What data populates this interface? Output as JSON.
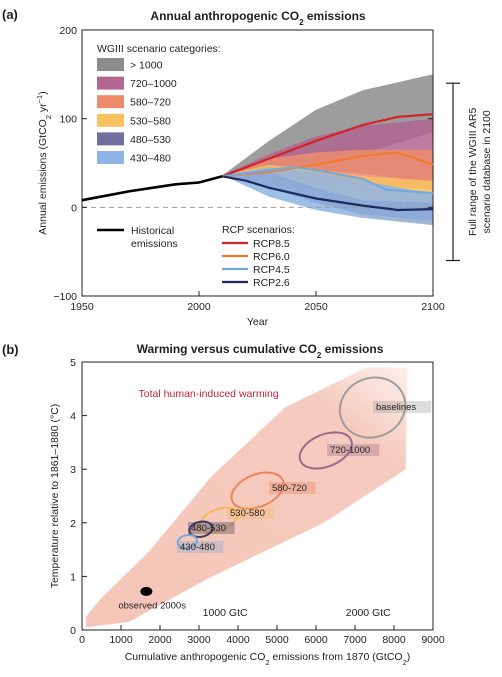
{
  "chart_data": [
    {
      "type": "area",
      "panel_label": "(a)",
      "title": "Annual anthropogenic CO2 emissions",
      "title_main": "Annual anthropogenic CO",
      "title_sub": "2",
      "title_tail": " emissions",
      "xlabel": "Year",
      "ylabel": "Annual emissions (GtCO2 yr−1)",
      "ylabel_main": "Annual emissions (GtCO",
      "ylabel_sub": "2",
      "ylabel_mid": " yr",
      "ylabel_sup": "−1",
      "ylabel_close": ")",
      "xlim": [
        1950,
        2100
      ],
      "ylim": [
        -100,
        200
      ],
      "xticks": [
        "1950",
        "2000",
        "2050",
        "2100"
      ],
      "yticks": [
        "200",
        "100",
        "0",
        "−100"
      ],
      "xtick_values": [
        1950,
        2000,
        2050,
        2100
      ],
      "ytick_values": [
        200,
        100,
        0,
        -100
      ],
      "legend_title": "WGIII scenario categories:",
      "scenario_categories": [
        {
          "label": "> 1000",
          "color": "#8c8c8c",
          "years": [
            2010,
            2030,
            2050,
            2070,
            2100
          ],
          "upper": [
            36,
            75,
            110,
            132,
            150
          ],
          "lower": [
            36,
            40,
            48,
            60,
            85
          ]
        },
        {
          "label": "720–1000",
          "color": "#b26690",
          "years": [
            2010,
            2030,
            2050,
            2070,
            2100
          ],
          "upper": [
            36,
            60,
            80,
            92,
            100
          ],
          "lower": [
            36,
            38,
            42,
            38,
            28
          ]
        },
        {
          "label": "580–720",
          "color": "#ed8c6d",
          "years": [
            2010,
            2030,
            2050,
            2070,
            2100
          ],
          "upper": [
            36,
            55,
            62,
            65,
            65
          ],
          "lower": [
            36,
            38,
            30,
            25,
            20
          ]
        },
        {
          "label": "530–580",
          "color": "#f8c160",
          "years": [
            2010,
            2030,
            2050,
            2070,
            2100
          ],
          "upper": [
            36,
            48,
            42,
            35,
            30
          ],
          "lower": [
            36,
            28,
            8,
            -10,
            -20
          ]
        },
        {
          "label": "480–530",
          "color": "#716f9e",
          "years": [
            2010,
            2030,
            2050,
            2070,
            2100
          ],
          "upper": [
            36,
            40,
            22,
            8,
            5
          ],
          "lower": [
            36,
            22,
            5,
            -8,
            -15
          ]
        },
        {
          "label": "430–480",
          "color": "#8fb4e3",
          "years": [
            2010,
            2030,
            2050,
            2070,
            2100
          ],
          "upper": [
            36,
            45,
            40,
            30,
            15
          ],
          "lower": [
            36,
            12,
            -3,
            -12,
            -20
          ]
        }
      ],
      "range_label_line1": "Full range of the WGIII AR5",
      "range_label_line2": "scenario database in 2100",
      "range_bounds": [
        140,
        -60
      ],
      "historical": {
        "label_line1": "Historical",
        "label_line2": "emissions",
        "color": "#000000",
        "x": [
          1950,
          1960,
          1970,
          1980,
          1990,
          2000,
          2010
        ],
        "y": [
          8,
          13,
          18,
          22,
          26,
          28,
          35
        ]
      },
      "rcp_title": "RCP scenarios:",
      "rcp": [
        {
          "label": "RCP8.5",
          "color": "#d1232a",
          "x": [
            2010,
            2030,
            2050,
            2070,
            2085,
            2100
          ],
          "y": [
            35,
            55,
            75,
            93,
            102,
            105
          ]
        },
        {
          "label": "RCP6.0",
          "color": "#ef7d2d",
          "x": [
            2010,
            2030,
            2050,
            2070,
            2085,
            2100
          ],
          "y": [
            35,
            40,
            48,
            58,
            62,
            48
          ]
        },
        {
          "label": "RCP4.5",
          "color": "#74a9dc",
          "x": [
            2010,
            2030,
            2040,
            2050,
            2070,
            2080,
            2100
          ],
          "y": [
            35,
            42,
            45,
            42,
            32,
            20,
            16
          ]
        },
        {
          "label": "RCP2.6",
          "color": "#1c2a5e",
          "x": [
            2010,
            2020,
            2030,
            2050,
            2070,
            2085,
            2100
          ],
          "y": [
            35,
            30,
            22,
            10,
            2,
            -3,
            -2
          ]
        }
      ]
    },
    {
      "type": "scatter",
      "panel_label": "(b)",
      "title": "Warming versus cumulative CO2 emissions",
      "title_main": "Warming versus cumulative CO",
      "title_sub": "2",
      "title_tail": " emissions",
      "xlabel": "Cumulative anthropogenic CO2 emissions from 1870 (GtCO2)",
      "xlabel_main": "Cumulative anthropogenic CO",
      "xlabel_sub": "2",
      "xlabel_mid": " emissions from 1870  (GtCO",
      "xlabel_sub2": "2",
      "xlabel_close": ")",
      "ylabel": "Temperature relative to 1861–1880 (°C)",
      "xlim": [
        0,
        9000
      ],
      "ylim": [
        0,
        5
      ],
      "xticks": [
        "0",
        "1000",
        "2000",
        "3000",
        "4000",
        "5000",
        "6000",
        "7000",
        "8000",
        "9000"
      ],
      "yticks": [
        "0",
        "1",
        "2",
        "3",
        "4",
        "5"
      ],
      "xtick_values": [
        0,
        1000,
        2000,
        3000,
        4000,
        5000,
        6000,
        7000,
        8000,
        9000
      ],
      "ytick_values": [
        0,
        1,
        2,
        3,
        4,
        5
      ],
      "gtc_labels": [
        {
          "label": "1000 GtC",
          "x": 3670
        },
        {
          "label": "2000 GtC",
          "x": 7340
        }
      ],
      "band_label": "Total human-induced warming",
      "band_color": "#f4c2b4",
      "band_label_color": "#b5283b",
      "ellipses": [
        {
          "label": "baselines",
          "color": "#9d9d9d",
          "cx": 7450,
          "cy": 4.15,
          "rx": 850,
          "ry": 0.55
        },
        {
          "label": "720-1000",
          "color": "#9a6a86",
          "cx": 6250,
          "cy": 3.35,
          "rx": 700,
          "ry": 0.3
        },
        {
          "label": "580-720",
          "color": "#e9855f",
          "cx": 4500,
          "cy": 2.6,
          "rx": 700,
          "ry": 0.3
        },
        {
          "label": "530-580",
          "color": "#f3b85a",
          "cx": 3500,
          "cy": 2.05,
          "rx": 500,
          "ry": 0.2
        },
        {
          "label": "480-530",
          "color": "#3d3a5c",
          "cx": 3050,
          "cy": 1.88,
          "rx": 300,
          "ry": 0.14
        },
        {
          "label": "430-480",
          "color": "#7fa5d6",
          "cx": 2700,
          "cy": 1.65,
          "rx": 250,
          "ry": 0.12
        }
      ],
      "observed": {
        "label": "observed 2000s",
        "x": 1650,
        "y": 0.72,
        "color": "#000000"
      }
    }
  ]
}
